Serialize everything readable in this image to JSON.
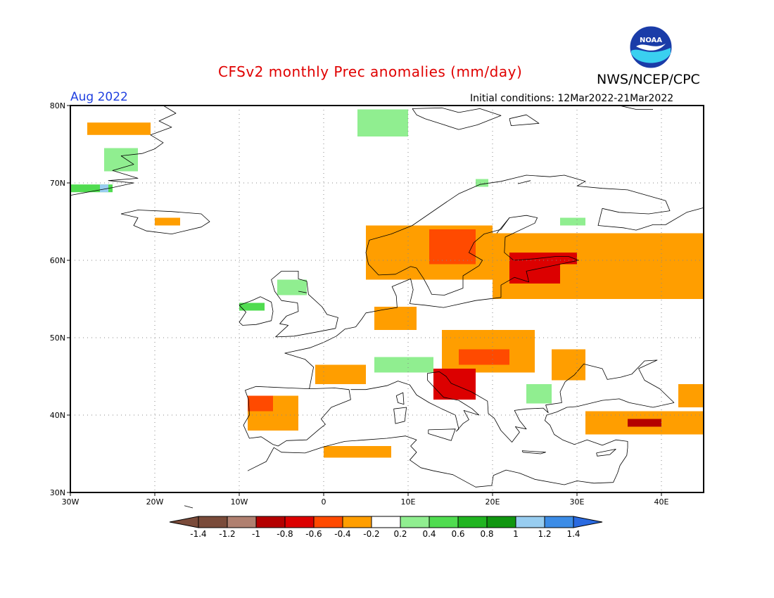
{
  "header": {
    "title": "CFSv2 monthly Prec anomalies (mm/day)",
    "agency": "NWS/NCEP/CPC",
    "logo_text": "NOAA",
    "month": "Aug 2022",
    "initial_conditions": "Initial conditions: 12Mar2022-21Mar2022"
  },
  "map": {
    "lon_range": [
      -30,
      45
    ],
    "lat_range": [
      30,
      80
    ],
    "lat_labels": [
      "30N",
      "40N",
      "50N",
      "60N",
      "70N",
      "80N"
    ],
    "lon_labels": [
      "30W",
      "20W",
      "10W",
      "0",
      "10E",
      "20E",
      "30E",
      "40E"
    ],
    "colors": {
      "orange": "#ff9e00",
      "red_orange": "#ff4a00",
      "red": "#dc0000",
      "dark_red": "#b40000",
      "light_green": "#90ee90",
      "green": "#50dc50",
      "dark_green": "#20b420",
      "light_blue": "#98cdf0"
    },
    "anomaly_regions": [
      {
        "level": "orange",
        "lon": [
          -28,
          -20.5
        ],
        "lat": [
          76.2,
          77.8
        ]
      },
      {
        "level": "orange",
        "lon": [
          -20,
          -17
        ],
        "lat": [
          64.5,
          65.5
        ]
      },
      {
        "level": "light_green",
        "lon": [
          -26,
          -22
        ],
        "lat": [
          71.5,
          74.5
        ]
      },
      {
        "level": "green",
        "lon": [
          -30,
          -25
        ],
        "lat": [
          68.8,
          69.8
        ]
      },
      {
        "level": "light_blue",
        "lon": [
          -26.5,
          -25.5
        ],
        "lat": [
          68.8,
          69.8
        ]
      },
      {
        "level": "light_green",
        "lon": [
          -5.5,
          -2
        ],
        "lat": [
          55.5,
          57.5
        ]
      },
      {
        "level": "green",
        "lon": [
          -10,
          -7
        ],
        "lat": [
          53.5,
          54.5
        ]
      },
      {
        "level": "light_green",
        "lon": [
          4,
          10
        ],
        "lat": [
          76,
          79.5
        ]
      },
      {
        "level": "light_green",
        "lon": [
          28,
          31
        ],
        "lat": [
          64.5,
          65.5
        ]
      },
      {
        "level": "light_green",
        "lon": [
          18,
          19.5
        ],
        "lat": [
          69.5,
          70.5
        ]
      },
      {
        "level": "orange",
        "lon": [
          5,
          20
        ],
        "lat": [
          57.5,
          64.5
        ]
      },
      {
        "level": "red_orange",
        "lon": [
          12.5,
          18
        ],
        "lat": [
          59.5,
          64
        ]
      },
      {
        "level": "orange",
        "lon": [
          20,
          45
        ],
        "lat": [
          55,
          63.5
        ]
      },
      {
        "level": "red",
        "lon": [
          22,
          30
        ],
        "lat": [
          59.5,
          61
        ]
      },
      {
        "level": "red",
        "lon": [
          22,
          28
        ],
        "lat": [
          57,
          59.5
        ]
      },
      {
        "level": "orange",
        "lon": [
          6,
          11
        ],
        "lat": [
          51,
          54
        ]
      },
      {
        "level": "orange",
        "lon": [
          14,
          25
        ],
        "lat": [
          45.5,
          51
        ]
      },
      {
        "level": "red_orange",
        "lon": [
          16,
          22
        ],
        "lat": [
          46.5,
          48.5
        ]
      },
      {
        "level": "red",
        "lon": [
          13,
          18
        ],
        "lat": [
          42,
          46
        ]
      },
      {
        "level": "orange",
        "lon": [
          27,
          31
        ],
        "lat": [
          44.5,
          48.5
        ]
      },
      {
        "level": "light_green",
        "lon": [
          6,
          13
        ],
        "lat": [
          45.5,
          47.5
        ]
      },
      {
        "level": "light_green",
        "lon": [
          24,
          27
        ],
        "lat": [
          41.5,
          44
        ]
      },
      {
        "level": "orange",
        "lon": [
          -9,
          -3
        ],
        "lat": [
          38,
          42.5
        ]
      },
      {
        "level": "red_orange",
        "lon": [
          -9,
          -6
        ],
        "lat": [
          40.5,
          42.5
        ]
      },
      {
        "level": "orange",
        "lon": [
          0,
          8
        ],
        "lat": [
          34.5,
          36
        ]
      },
      {
        "level": "orange",
        "lon": [
          -1,
          5
        ],
        "lat": [
          44,
          46.5
        ]
      },
      {
        "level": "orange",
        "lon": [
          31,
          45
        ],
        "lat": [
          37.5,
          40.5
        ]
      },
      {
        "level": "dark_red",
        "lon": [
          36,
          40
        ],
        "lat": [
          38.5,
          39.5
        ]
      },
      {
        "level": "orange",
        "lon": [
          42,
          45
        ],
        "lat": [
          41,
          44
        ]
      }
    ]
  },
  "colorbar": {
    "labels": [
      "-1.4",
      "-1.2",
      "-1",
      "-0.8",
      "-0.6",
      "-0.4",
      "-0.2",
      "0.2",
      "0.4",
      "0.6",
      "0.8",
      "1",
      "1.2",
      "1.4"
    ],
    "colors": [
      "#7a4b3a",
      "#b08070",
      "#b40000",
      "#dc0000",
      "#ff4a00",
      "#ff9e00",
      "#ffffff",
      "#90ee90",
      "#50dc50",
      "#20b420",
      "#109610",
      "#98cdf0",
      "#3c8ce6"
    ],
    "low_color": "#7a4b3a",
    "high_color": "#2a6ae0"
  }
}
